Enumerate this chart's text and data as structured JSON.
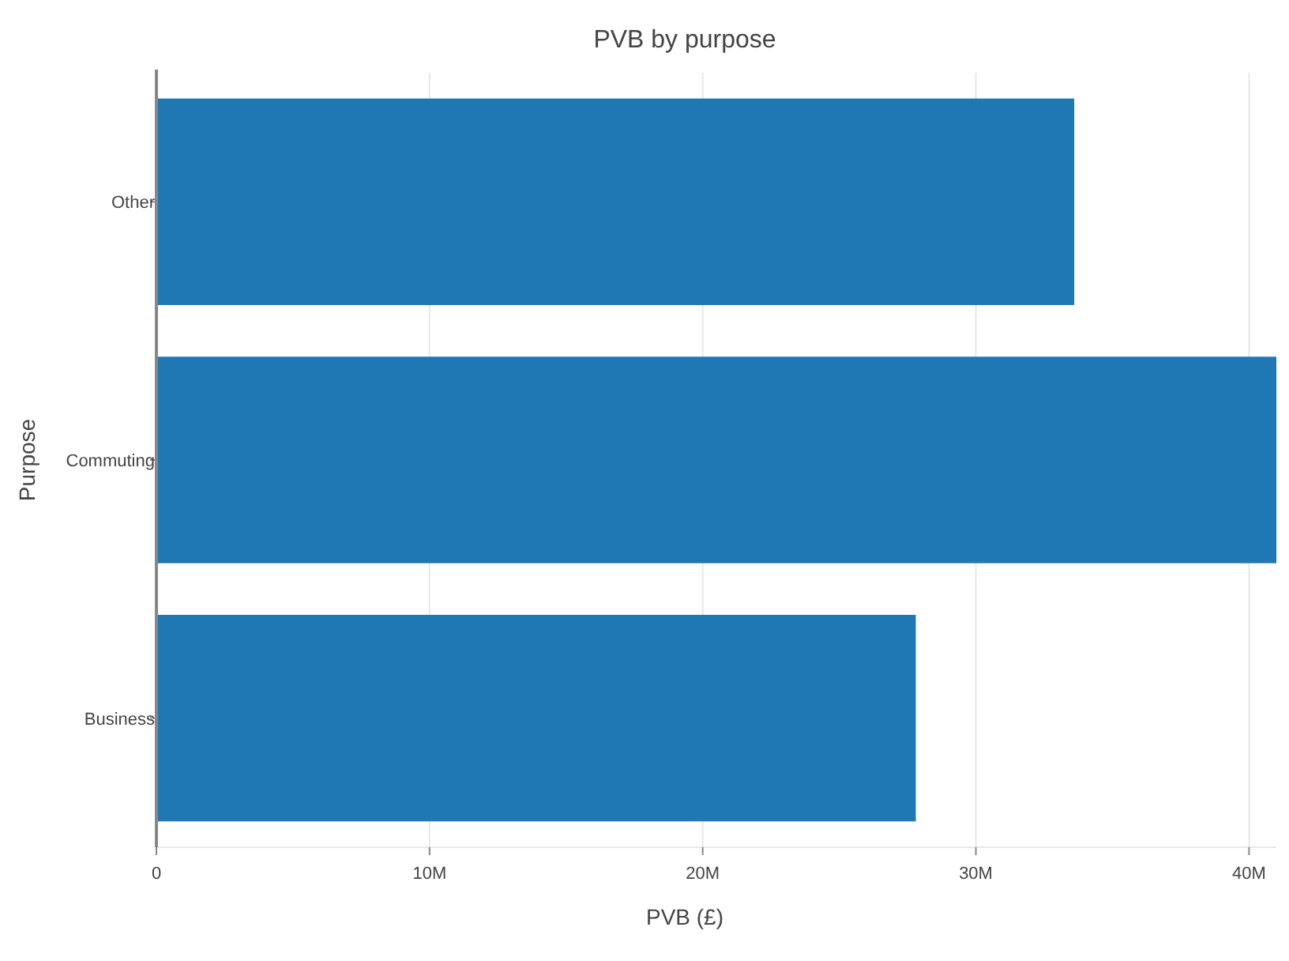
{
  "chart_data": {
    "type": "bar",
    "orientation": "horizontal",
    "title": "PVB by purpose",
    "xlabel": "PVB (£)",
    "ylabel": "Purpose",
    "categories": [
      "Other",
      "Commuting",
      "Business"
    ],
    "values": [
      33.6,
      41,
      27.8
    ],
    "color": "#1f77b4",
    "xlim": [
      0,
      41
    ],
    "xticks": [
      0,
      {
        "value": 10,
        "label": "10M"
      },
      {
        "value": 20,
        "label": "20M"
      },
      {
        "value": 30,
        "label": "30M"
      },
      {
        "value": 40,
        "label": "40M"
      }
    ],
    "grid": "x"
  }
}
